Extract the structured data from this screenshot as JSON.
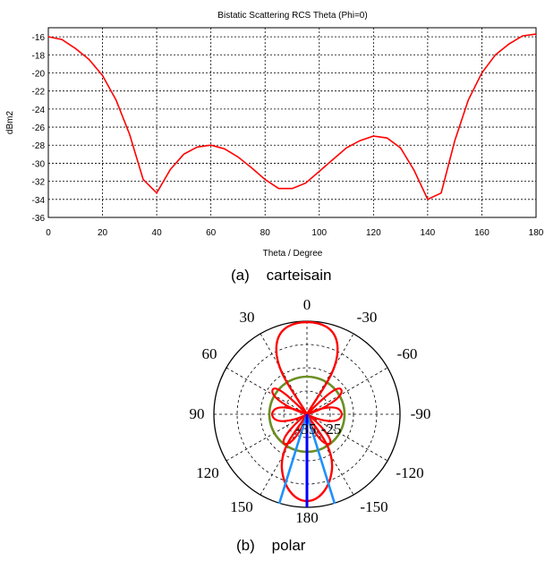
{
  "chart_data": [
    {
      "type": "line",
      "title": "Bistatic Scattering RCS Theta (Phi=0)",
      "xlabel": "Theta / Degree",
      "ylabel": "dBm2",
      "xlim": [
        0,
        180
      ],
      "ylim": [
        -36,
        -15
      ],
      "xticks": [
        "0",
        "20",
        "40",
        "60",
        "80",
        "100",
        "120",
        "140",
        "160",
        "180"
      ],
      "yticks": [
        "-16",
        "-18",
        "-20",
        "-22",
        "-24",
        "-26",
        "-28",
        "-30",
        "-32",
        "-34",
        "-36"
      ],
      "grid": true,
      "series": [
        {
          "color": "#ff0000",
          "x": [
            0,
            5,
            10,
            15,
            20,
            25,
            30,
            35,
            40,
            45,
            50,
            55,
            60,
            65,
            70,
            75,
            80,
            85,
            90,
            95,
            100,
            105,
            110,
            115,
            120,
            125,
            130,
            135,
            140,
            145,
            150,
            155,
            160,
            165,
            170,
            175,
            180
          ],
          "y": [
            -16.0,
            -16.3,
            -17.3,
            -18.5,
            -20.3,
            -23.0,
            -26.8,
            -31.8,
            -33.3,
            -30.7,
            -29.0,
            -28.2,
            -28.0,
            -28.4,
            -29.3,
            -30.5,
            -31.8,
            -32.8,
            -32.8,
            -32.2,
            -30.9,
            -29.6,
            -28.3,
            -27.5,
            -27.0,
            -27.2,
            -28.3,
            -30.8,
            -34.0,
            -33.3,
            -27.5,
            -23.0,
            -20.0,
            -18.0,
            -16.8,
            -15.9,
            -15.7
          ]
        }
      ],
      "caption": "(a)    carteisain"
    },
    {
      "type": "polar",
      "angle_labels": [
        "0",
        "30",
        "-30",
        "60",
        "-60",
        "90",
        "-90",
        "120",
        "-120",
        "150",
        "-150",
        "180"
      ],
      "radial_labels": [
        "-25",
        "-35"
      ],
      "series": [
        {
          "color": "#ff0000",
          "description_label": ""
        },
        {
          "color": "#6b8e23"
        },
        {
          "color": "#1e90ff"
        },
        {
          "color": "#0000ff"
        }
      ],
      "caption": "(b)    polar"
    }
  ],
  "colors": {
    "curve": "#ff0000",
    "circle": "#6b8e23",
    "beam": "#1e90ff",
    "axis_beam": "#0000ff"
  }
}
